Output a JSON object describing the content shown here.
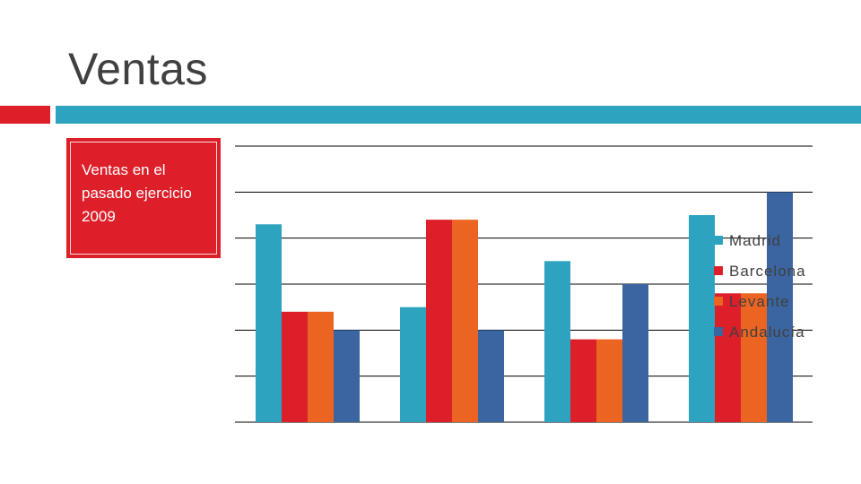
{
  "slide": {
    "title": "Ventas",
    "callout_text": "Ventas en el pasado ejercicio 2009"
  },
  "colors": {
    "title": "#404040",
    "accent_red": "#dd1f2a",
    "accent_teal": "#2ea3c0",
    "callout_bg": "#dd1f2a"
  },
  "chart_data": {
    "type": "bar",
    "title": "",
    "xlabel": "",
    "ylabel": "",
    "categories": [
      "",
      "",
      "",
      ""
    ],
    "ylim": [
      0,
      6
    ],
    "grid": true,
    "legend_position": "right",
    "series": [
      {
        "name": "Madrid",
        "color": "#2ea3c0",
        "values": [
          4.3,
          2.5,
          3.5,
          4.5
        ]
      },
      {
        "name": "Barcelona",
        "color": "#dd1f2a",
        "values": [
          2.4,
          4.4,
          1.8,
          2.8
        ]
      },
      {
        "name": "Levante",
        "color": "#ec6421",
        "values": [
          2.4,
          4.4,
          1.8,
          2.8
        ]
      },
      {
        "name": "Andalucía",
        "color": "#3a65a0",
        "values": [
          2.0,
          2.0,
          3.0,
          5.0
        ]
      }
    ]
  }
}
